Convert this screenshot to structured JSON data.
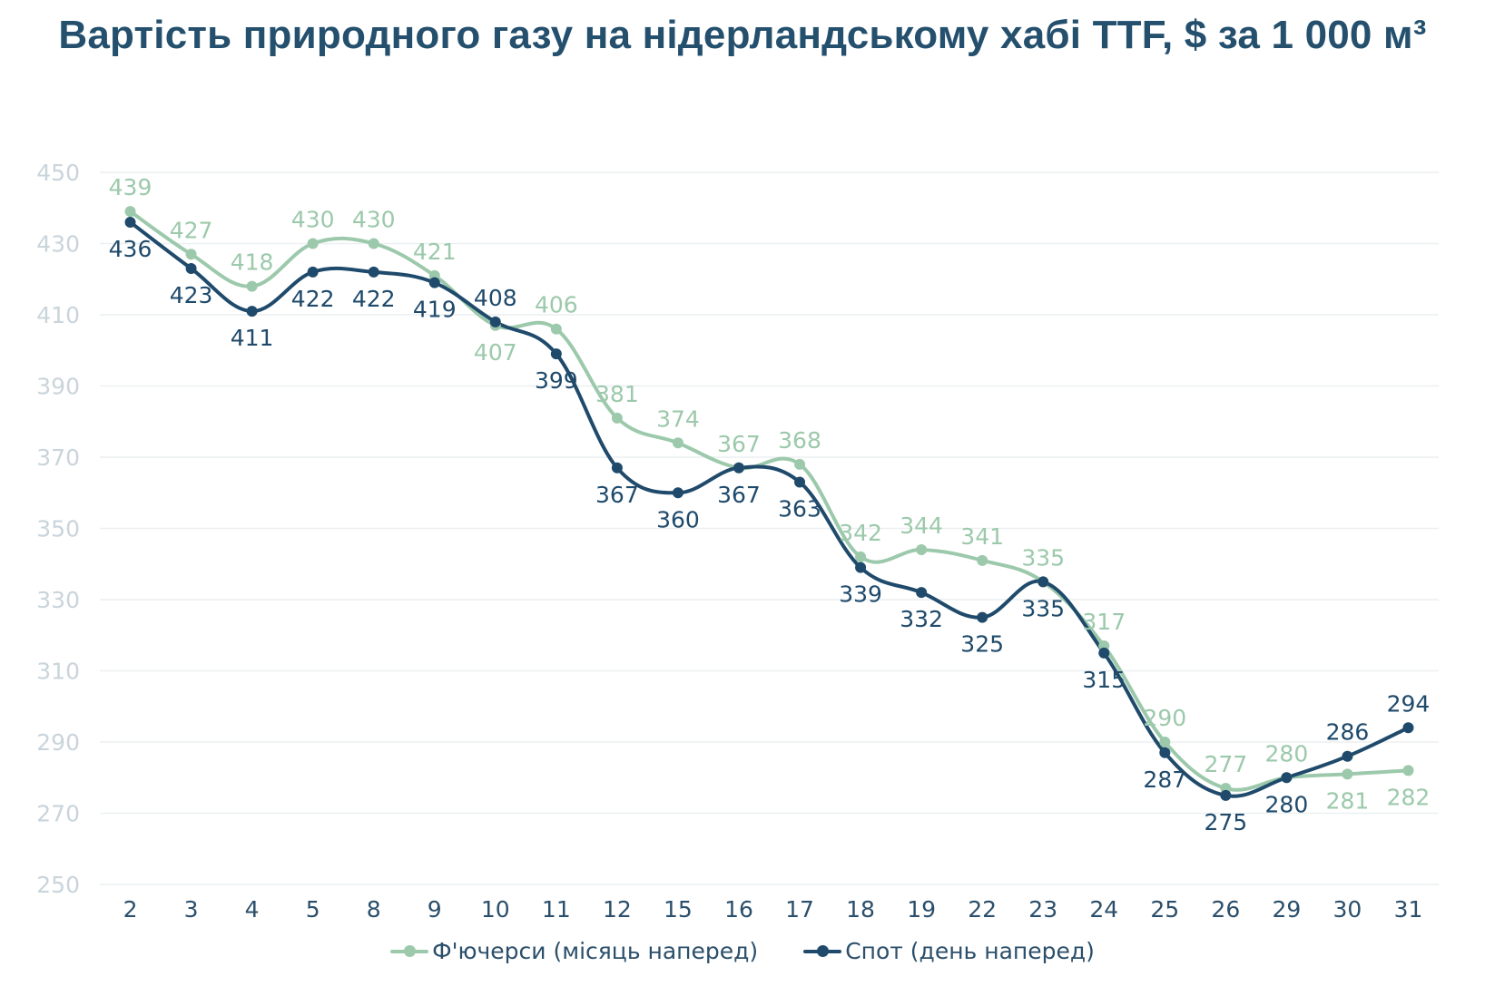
{
  "title": "Вартість природного газу на нідерландському хабі TTF, $ за 1 000 м³",
  "chart_data": {
    "type": "line",
    "categories": [
      "2",
      "3",
      "4",
      "5",
      "8",
      "9",
      "10",
      "11",
      "12",
      "15",
      "16",
      "17",
      "18",
      "19",
      "22",
      "23",
      "24",
      "25",
      "26",
      "29",
      "30",
      "31"
    ],
    "ylim": [
      250,
      450
    ],
    "yticks": [
      250,
      270,
      290,
      310,
      330,
      350,
      370,
      390,
      410,
      430,
      450
    ],
    "grid": true,
    "legend_position": "bottom",
    "series": [
      {
        "name": "Ф'ючерси (місяць наперед)",
        "color": "#9cc9ab",
        "values": [
          439,
          427,
          418,
          430,
          430,
          421,
          407,
          406,
          381,
          374,
          367,
          368,
          342,
          344,
          341,
          335,
          317,
          290,
          277,
          280,
          281,
          282
        ]
      },
      {
        "name": "Спот (день наперед)",
        "color": "#1f4a6b",
        "values": [
          436,
          423,
          411,
          422,
          422,
          419,
          408,
          399,
          367,
          360,
          367,
          363,
          339,
          332,
          325,
          335,
          315,
          287,
          275,
          280,
          286,
          294
        ]
      }
    ]
  },
  "colors": {
    "title": "#24506e",
    "grid": "#eceff1",
    "ytick": "#c9d4db",
    "xtick": "#2b4f6b"
  }
}
